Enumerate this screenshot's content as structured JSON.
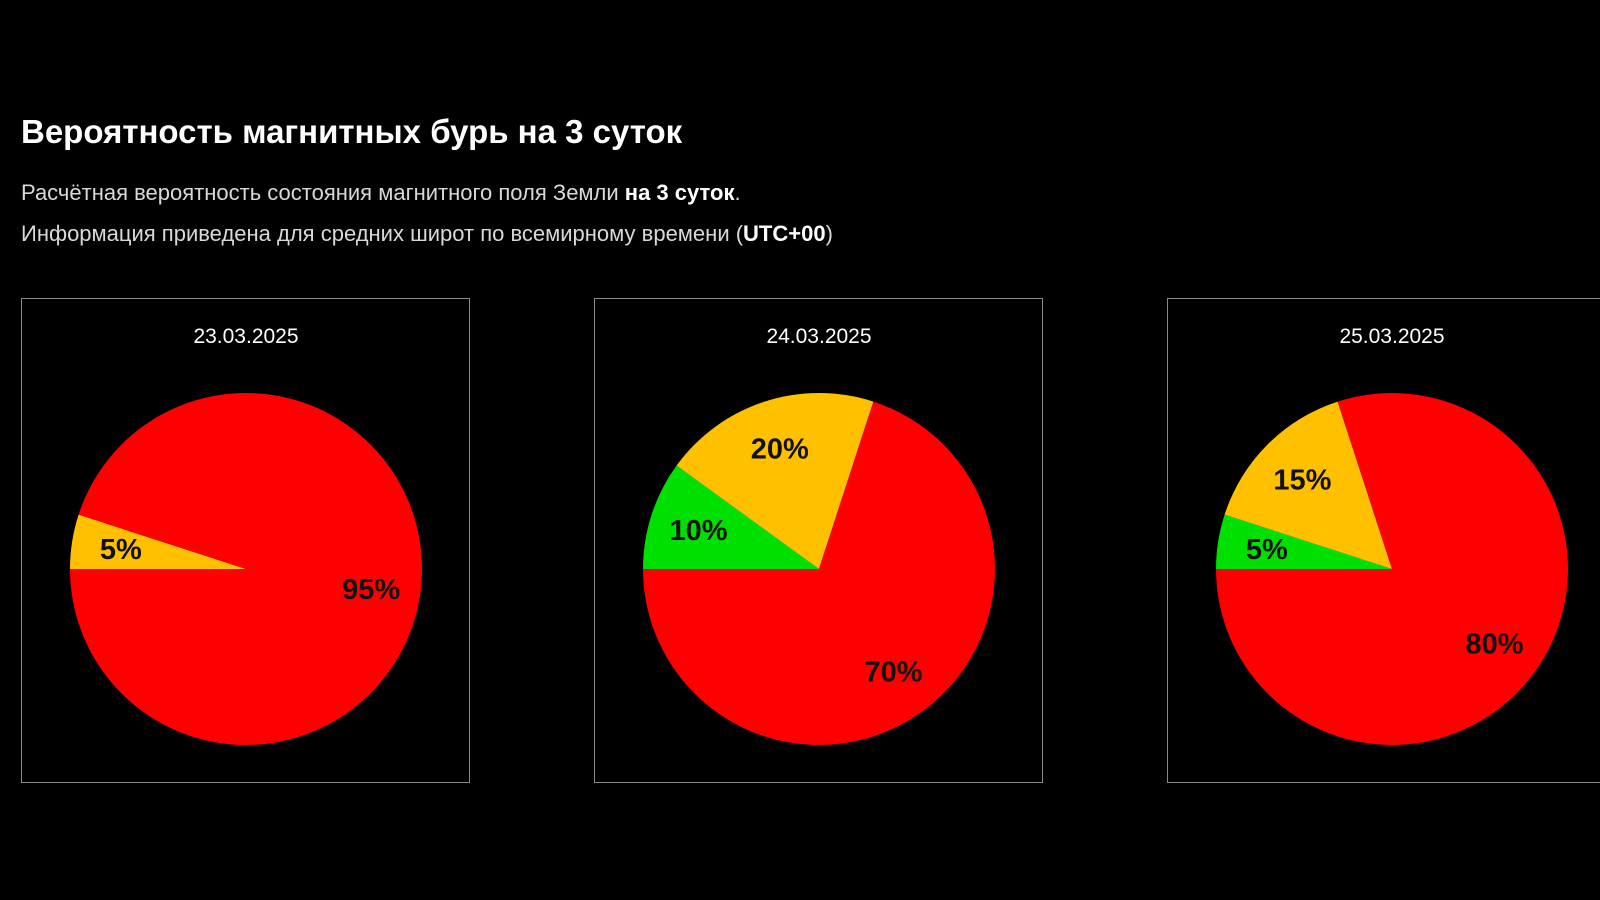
{
  "header": {
    "title": "Вероятность магнитных бурь на 3 суток",
    "line1_prefix": "Расчётная вероятность состояния магнитного поля Земли ",
    "line1_bold": "на 3 суток",
    "line1_suffix": ".",
    "line2_prefix": "Информация приведена для средних широт по всемирному времени (",
    "line2_bold": "UTC+00",
    "line2_suffix": ")"
  },
  "colors": {
    "green": "#00e000",
    "yellow": "#ffc000",
    "red": "#ff0000"
  },
  "chart_data": [
    {
      "type": "pie",
      "title": "23.03.2025",
      "slices": [
        {
          "color": "#00e000",
          "value": 0,
          "label": ""
        },
        {
          "color": "#ffc000",
          "value": 5,
          "label": "5%"
        },
        {
          "color": "#ff0000",
          "value": 95,
          "label": "95%"
        }
      ]
    },
    {
      "type": "pie",
      "title": "24.03.2025",
      "slices": [
        {
          "color": "#00e000",
          "value": 10,
          "label": "10%"
        },
        {
          "color": "#ffc000",
          "value": 20,
          "label": "20%"
        },
        {
          "color": "#ff0000",
          "value": 70,
          "label": "70%"
        }
      ]
    },
    {
      "type": "pie",
      "title": "25.03.2025",
      "slices": [
        {
          "color": "#00e000",
          "value": 5,
          "label": "5%"
        },
        {
          "color": "#ffc000",
          "value": 15,
          "label": "15%"
        },
        {
          "color": "#ff0000",
          "value": 80,
          "label": "80%"
        }
      ]
    }
  ]
}
